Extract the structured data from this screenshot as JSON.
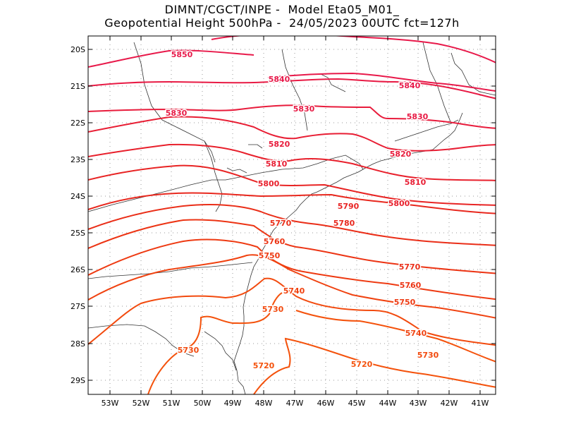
{
  "title": {
    "line1": "DIMNT/CGCT/INPE -  Model Eta05_M01_",
    "line2": "Geopotential Height 500hPa -  24/05/2023 00UTC fct=127h"
  },
  "axes": {
    "lat_labels": [
      "20S",
      "21S",
      "22S",
      "23S",
      "24S",
      "25S",
      "26S",
      "27S",
      "28S",
      "29S"
    ],
    "lon_labels": [
      "53W",
      "52W",
      "51W",
      "50W",
      "49W",
      "48W",
      "47W",
      "46W",
      "45W",
      "44W",
      "43W",
      "42W",
      "41W"
    ]
  },
  "contours": [
    {
      "value": "5850",
      "color": "#e8194a"
    },
    {
      "value": "5840",
      "color": "#e8194a"
    },
    {
      "value": "5830",
      "color": "#e81a44"
    },
    {
      "value": "5820",
      "color": "#e81c3c"
    },
    {
      "value": "5810",
      "color": "#e81e34"
    },
    {
      "value": "5800",
      "color": "#e8202c"
    },
    {
      "value": "5790",
      "color": "#e82424"
    },
    {
      "value": "5780",
      "color": "#e8281e"
    },
    {
      "value": "5770",
      "color": "#ea2e18"
    },
    {
      "value": "5760",
      "color": "#ec3414"
    },
    {
      "value": "5750",
      "color": "#ee3a12"
    },
    {
      "value": "5740",
      "color": "#f04210"
    },
    {
      "value": "5730",
      "color": "#f24a0e"
    },
    {
      "value": "5720",
      "color": "#f4520c"
    }
  ],
  "labels": [
    {
      "id": "5850",
      "text": "5850"
    },
    {
      "id": "5840a",
      "text": "5840"
    },
    {
      "id": "5840b",
      "text": "5840"
    },
    {
      "id": "5830a",
      "text": "5830"
    },
    {
      "id": "5830b",
      "text": "5830"
    },
    {
      "id": "5830c",
      "text": "5830"
    },
    {
      "id": "5820a",
      "text": "5820"
    },
    {
      "id": "5820b",
      "text": "5820"
    },
    {
      "id": "5810a",
      "text": "5810"
    },
    {
      "id": "5810b",
      "text": "5810"
    },
    {
      "id": "5800a",
      "text": "5800"
    },
    {
      "id": "5800b",
      "text": "5800"
    },
    {
      "id": "5790",
      "text": "5790"
    },
    {
      "id": "5780",
      "text": "5780"
    },
    {
      "id": "5770a",
      "text": "5770"
    },
    {
      "id": "5770b",
      "text": "5770"
    },
    {
      "id": "5760a",
      "text": "5760"
    },
    {
      "id": "5760b",
      "text": "5760"
    },
    {
      "id": "5750a",
      "text": "5750"
    },
    {
      "id": "5750b",
      "text": "5750"
    },
    {
      "id": "5740a",
      "text": "5740"
    },
    {
      "id": "5740b",
      "text": "5740"
    },
    {
      "id": "5730a",
      "text": "5730"
    },
    {
      "id": "5730b",
      "text": "5730"
    },
    {
      "id": "5730c",
      "text": "5730"
    },
    {
      "id": "5720a",
      "text": "5720"
    },
    {
      "id": "5720b",
      "text": "5720"
    }
  ]
}
